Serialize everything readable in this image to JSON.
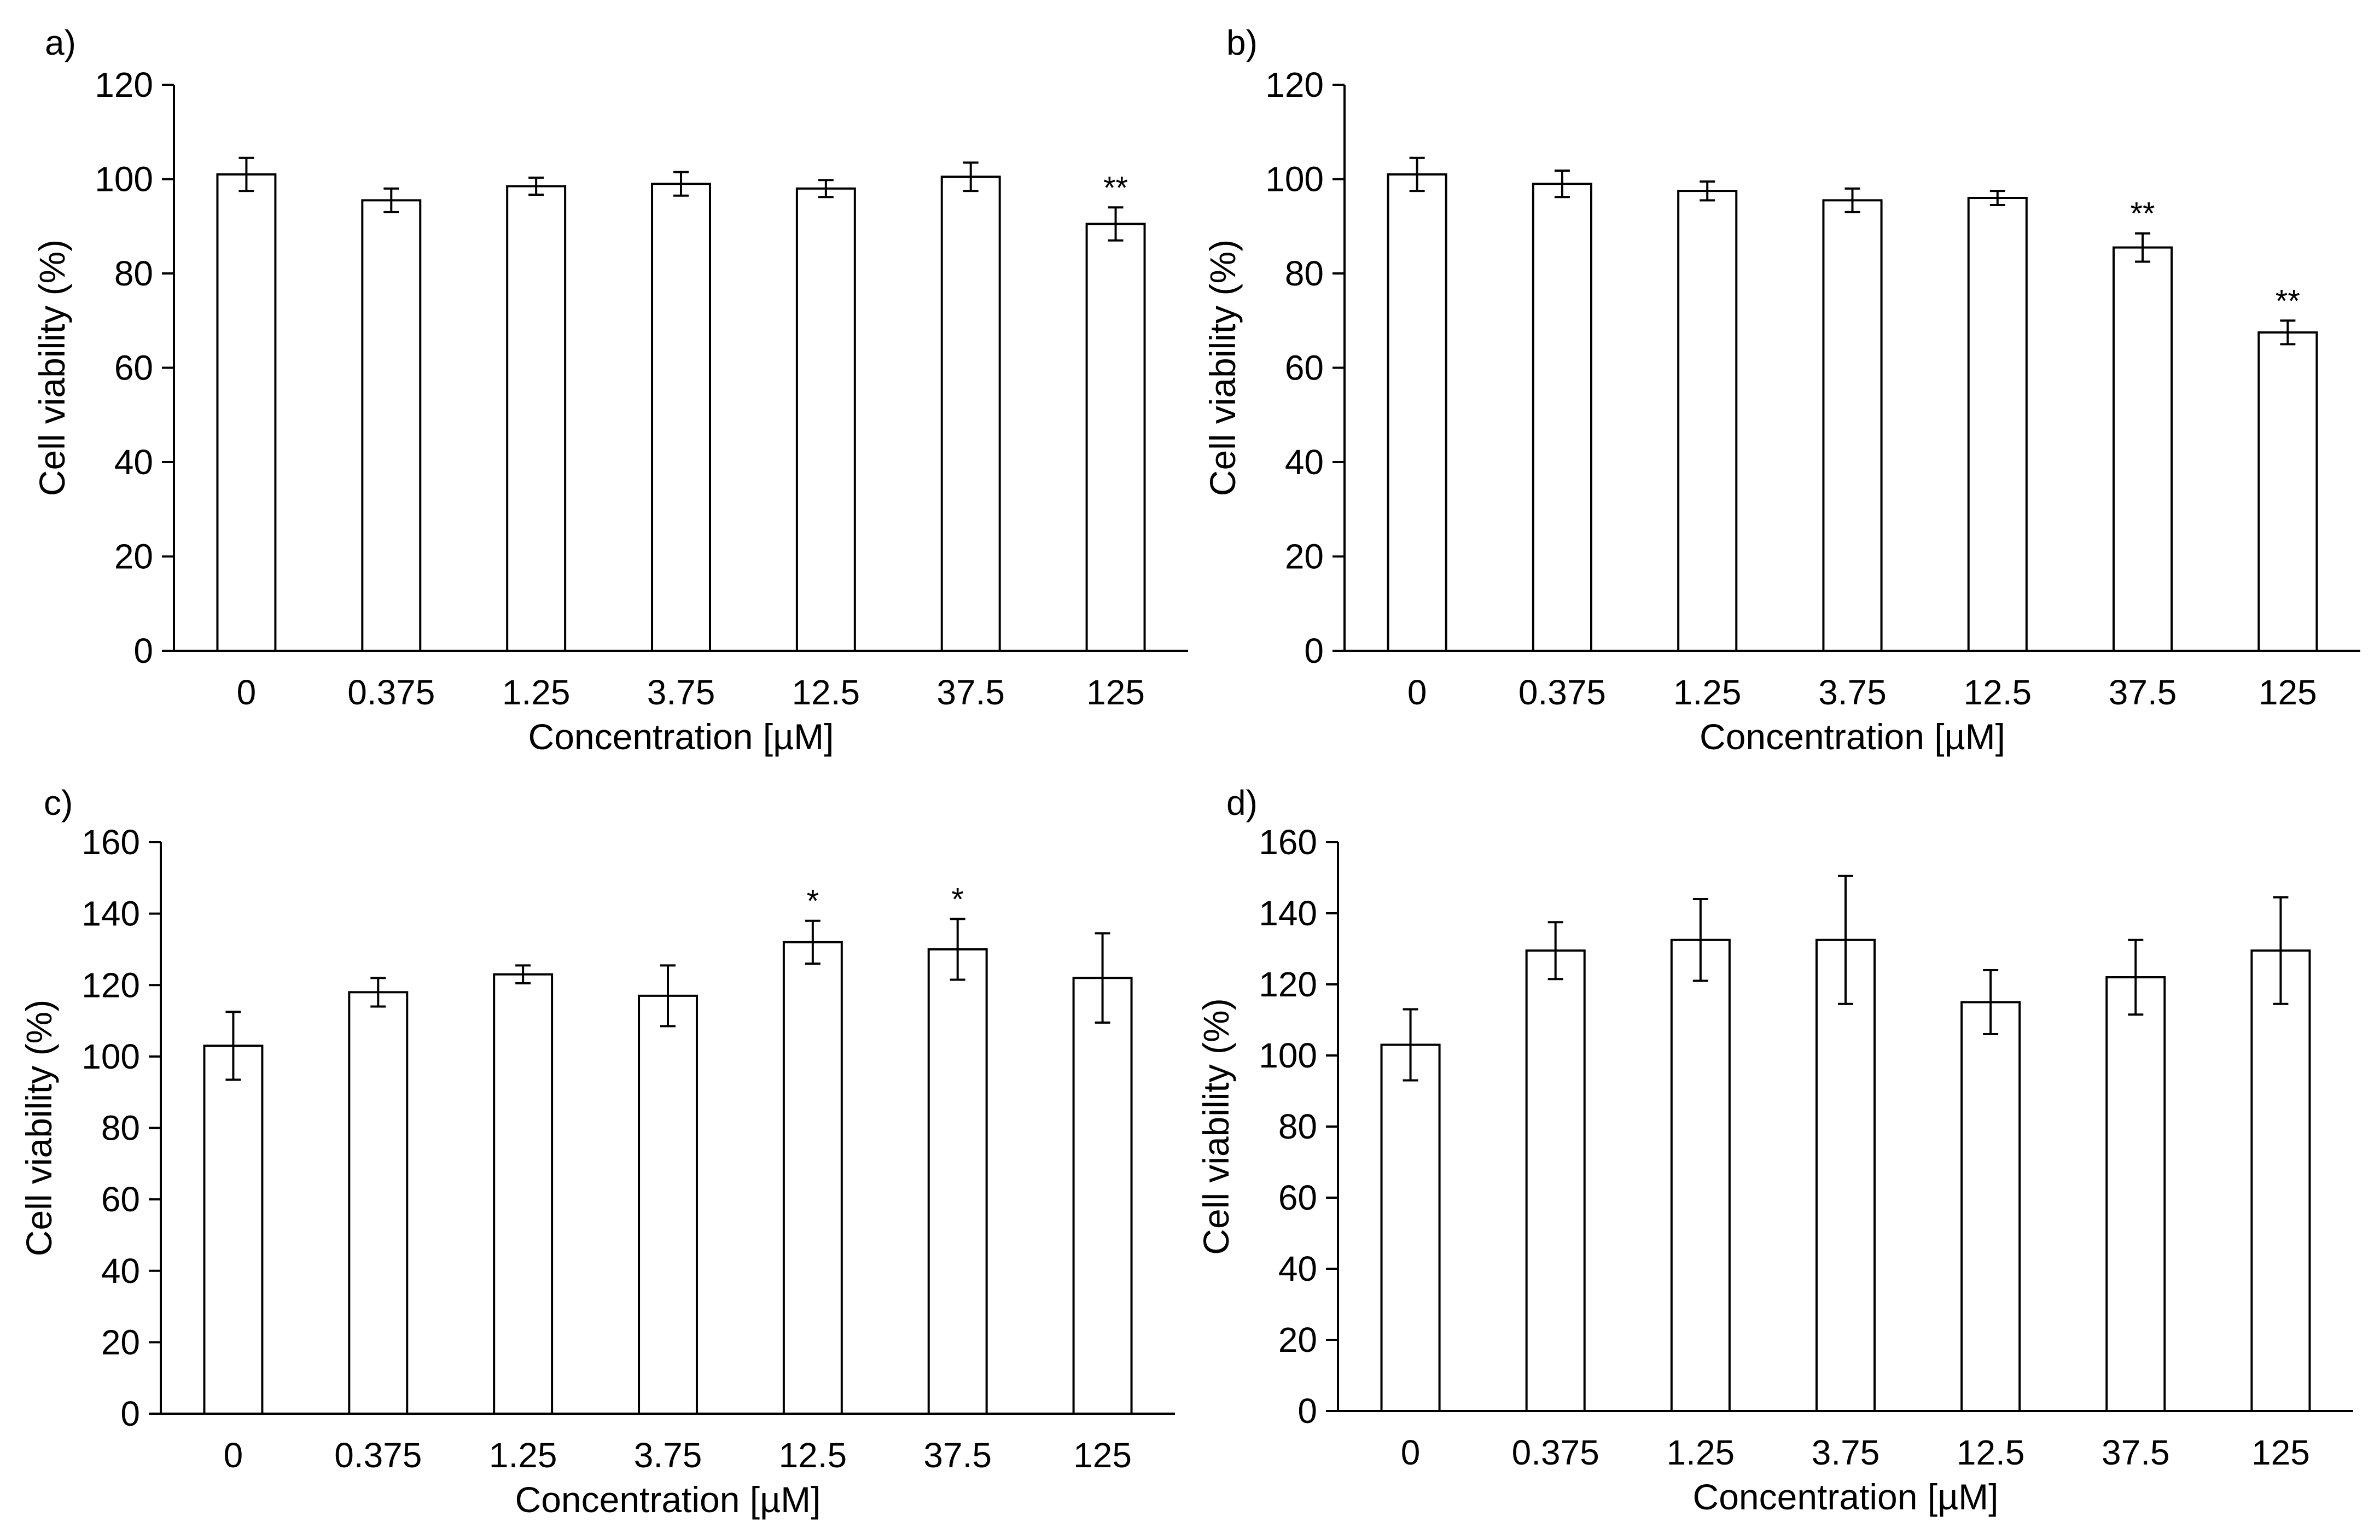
{
  "chart_data": [
    {
      "type": "bar",
      "panel_label": "a)",
      "categories": [
        "0",
        "0.375",
        "1.25",
        "3.75",
        "12.5",
        "37.5",
        "125"
      ],
      "values": [
        101,
        95.5,
        98.5,
        99,
        98,
        100.5,
        90.5
      ],
      "errors": [
        3.5,
        2.5,
        1.8,
        2.5,
        1.8,
        3,
        3.5
      ],
      "significance": [
        "",
        "",
        "",
        "",
        "",
        "",
        "**"
      ],
      "xlabel": "Concentration [µM]",
      "ylabel": "Cell viability (%)",
      "ylim": [
        0,
        120
      ],
      "yticks": [
        0,
        20,
        40,
        60,
        80,
        100,
        120
      ],
      "grid": false,
      "bar_fill": "#ffffff",
      "bar_stroke": "#000000"
    },
    {
      "type": "bar",
      "panel_label": "b)",
      "categories": [
        "0",
        "0.375",
        "1.25",
        "3.75",
        "12.5",
        "37.5",
        "125"
      ],
      "values": [
        101,
        99,
        97.5,
        95.5,
        96,
        85.5,
        67.5
      ],
      "errors": [
        3.5,
        2.8,
        2,
        2.5,
        1.5,
        3,
        2.5
      ],
      "significance": [
        "",
        "",
        "",
        "",
        "",
        "**",
        "**"
      ],
      "xlabel": "Concentration [µM]",
      "ylabel": "Cell viability (%)",
      "ylim": [
        0,
        120
      ],
      "yticks": [
        0,
        20,
        40,
        60,
        80,
        100,
        120
      ],
      "grid": false,
      "bar_fill": "#ffffff",
      "bar_stroke": "#000000"
    },
    {
      "type": "bar",
      "panel_label": "c)",
      "categories": [
        "0",
        "0.375",
        "1.25",
        "3.75",
        "12.5",
        "37.5",
        "125"
      ],
      "values": [
        103,
        118,
        123,
        117,
        132,
        130,
        122
      ],
      "errors": [
        9.5,
        4,
        2.5,
        8.5,
        6,
        8.5,
        12.5
      ],
      "significance": [
        "",
        "",
        "",
        "",
        "*",
        "*",
        ""
      ],
      "xlabel": "Concentration [µM]",
      "ylabel": "Cell viability (%)",
      "ylim": [
        0,
        160
      ],
      "yticks": [
        0,
        20,
        40,
        60,
        80,
        100,
        120,
        140,
        160
      ],
      "grid": false,
      "bar_fill": "#ffffff",
      "bar_stroke": "#000000"
    },
    {
      "type": "bar",
      "panel_label": "d)",
      "categories": [
        "0",
        "0.375",
        "1.25",
        "3.75",
        "12.5",
        "37.5",
        "125"
      ],
      "values": [
        103,
        129.5,
        132.5,
        132.5,
        115,
        122,
        129.5
      ],
      "errors": [
        10,
        8,
        11.5,
        18,
        9,
        10.5,
        15
      ],
      "significance": [
        "",
        "",
        "",
        "",
        "",
        "",
        ""
      ],
      "xlabel": "Concentration [µM]",
      "ylabel": "Cell viability (%)",
      "ylim": [
        0,
        160
      ],
      "yticks": [
        0,
        20,
        40,
        60,
        80,
        100,
        120,
        140,
        160
      ],
      "grid": false,
      "bar_fill": "#ffffff",
      "bar_stroke": "#000000"
    }
  ]
}
